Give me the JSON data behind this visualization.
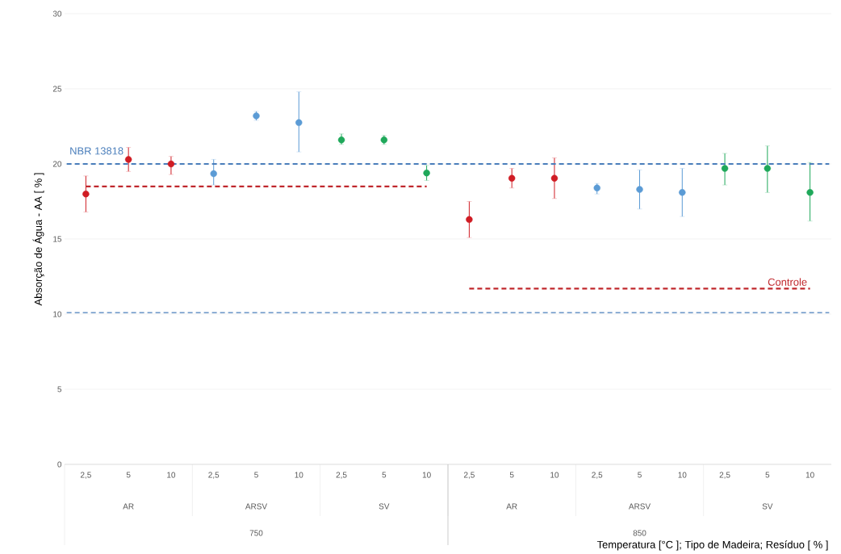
{
  "chart_data": {
    "type": "scatter",
    "ylabel": "Absorção de Água - AA [ % ]",
    "categories": [
      "2,5",
      "5",
      "10",
      "2,5",
      "5",
      "10",
      "2,5",
      "5",
      "10",
      "2,5",
      "5",
      "10",
      "2,5",
      "5",
      "10",
      "2,5",
      "5",
      "10"
    ],
    "annotations": [
      "AR",
      "ARSV",
      "SV",
      "AR",
      "ARSV",
      "SV",
      "750",
      "850",
      "Temperatura [°C ]; Tipo de Madeira; Resíduo [ % ]"
    ],
    "ylim": [
      0,
      30
    ],
    "yticks": [
      0,
      5,
      10,
      15,
      20,
      25,
      30
    ],
    "grid": "y",
    "series": [
      {
        "color": "#d01c24",
        "marker": "circle",
        "values": [
          18.0,
          20.3,
          20.0,
          null,
          null,
          null,
          null,
          null,
          null,
          16.3,
          19.05,
          19.05,
          null,
          null,
          null,
          null,
          null,
          null
        ],
        "errors": [
          [
            16.8,
            19.2
          ],
          [
            19.5,
            21.1
          ],
          [
            19.3,
            20.5
          ],
          null,
          null,
          null,
          null,
          null,
          null,
          [
            15.1,
            17.5
          ],
          [
            18.4,
            19.7
          ],
          [
            17.7,
            20.4
          ],
          null,
          null,
          null,
          null,
          null,
          null
        ]
      },
      {
        "color": "#5b9bd5",
        "marker": "circle",
        "values": [
          null,
          null,
          null,
          19.35,
          23.2,
          22.75,
          null,
          null,
          null,
          null,
          null,
          null,
          18.4,
          18.3,
          18.1,
          null,
          null,
          null
        ],
        "errors": [
          null,
          null,
          null,
          [
            18.6,
            20.3
          ],
          [
            22.9,
            23.5
          ],
          [
            20.8,
            24.8
          ],
          null,
          null,
          null,
          null,
          null,
          null,
          [
            18.0,
            18.7
          ],
          [
            17.0,
            19.6
          ],
          [
            16.5,
            19.7
          ],
          null,
          null,
          null
        ]
      },
      {
        "color": "#1fa85a",
        "marker": "circle",
        "values": [
          null,
          null,
          null,
          null,
          null,
          null,
          21.6,
          21.6,
          19.4,
          null,
          null,
          null,
          null,
          null,
          null,
          19.7,
          19.7,
          18.1
        ],
        "errors": [
          null,
          null,
          null,
          null,
          null,
          null,
          [
            21.3,
            22.0
          ],
          [
            21.3,
            21.9
          ],
          [
            18.9,
            19.9
          ],
          null,
          null,
          null,
          null,
          null,
          null,
          [
            18.6,
            20.7
          ],
          [
            18.1,
            21.2
          ],
          [
            16.2,
            20.1
          ]
        ]
      },
      {
        "type": "line",
        "color": "#c0282d",
        "line_style": "dashed",
        "marker": "none",
        "values": [
          18.5,
          18.5,
          18.5,
          18.5,
          18.5,
          18.5,
          18.5,
          18.5,
          18.5,
          null,
          null,
          null,
          null,
          null,
          null,
          null,
          null,
          null
        ]
      },
      {
        "type": "line",
        "name": "Controle",
        "color": "#c0282d",
        "line_style": "dashed",
        "marker": "none",
        "values": [
          null,
          null,
          null,
          null,
          null,
          null,
          null,
          null,
          null,
          11.7,
          11.7,
          11.7,
          11.7,
          11.7,
          11.7,
          11.7,
          11.7,
          11.7
        ]
      }
    ],
    "ref_lines": [
      {
        "axis": "y",
        "value": 20,
        "label": "NBR 13818",
        "color": "#4a7ebb",
        "line_style": "dashed"
      },
      {
        "axis": "y",
        "value": 10.1,
        "color": "#4a7ebb",
        "line_style": "dashed"
      }
    ]
  }
}
